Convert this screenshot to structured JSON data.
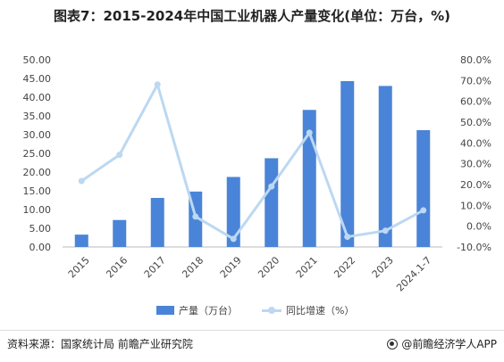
{
  "title": "图表7：2015-2024年中国工业机器人产量变化(单位：万台，%)",
  "legend": {
    "bar_label": "产量（万台）",
    "line_label": "同比增速（%）"
  },
  "footer": {
    "source": "资料来源：国家统计局 前瞻产业研究院",
    "credit": "@前瞻经济学人APP"
  },
  "colors": {
    "bar": "#4a84d8",
    "line": "#bcd8f2",
    "grid": "#e6e6e6"
  },
  "chart_data": {
    "type": "bar",
    "categories": [
      "2015",
      "2016",
      "2017",
      "2018",
      "2019",
      "2020",
      "2021",
      "2022",
      "2023",
      "2024.1-7"
    ],
    "series": [
      {
        "name": "产量（万台）",
        "type": "bar",
        "axis": "left",
        "values": [
          3.3,
          7.2,
          13.1,
          14.8,
          18.7,
          23.7,
          36.6,
          44.3,
          43.0,
          31.2
        ]
      },
      {
        "name": "同比增速（%）",
        "type": "line",
        "axis": "right",
        "values": [
          21.7,
          34.3,
          68.1,
          4.6,
          -6.1,
          19.1,
          44.9,
          -5.1,
          -2.2,
          7.6
        ]
      }
    ],
    "y_left": {
      "ticks": [
        "0.00",
        "5.00",
        "10.00",
        "15.00",
        "20.00",
        "25.00",
        "30.00",
        "35.00",
        "40.00",
        "45.00",
        "50.00"
      ],
      "ylim": [
        0,
        50
      ]
    },
    "y_right": {
      "ticks": [
        "-10.0%",
        "0.0%",
        "10.0%",
        "20.0%",
        "30.0%",
        "40.0%",
        "50.0%",
        "60.0%",
        "70.0%",
        "80.0%"
      ],
      "ylim": [
        -10,
        80
      ]
    },
    "grid": false,
    "legend_position": "bottom"
  }
}
